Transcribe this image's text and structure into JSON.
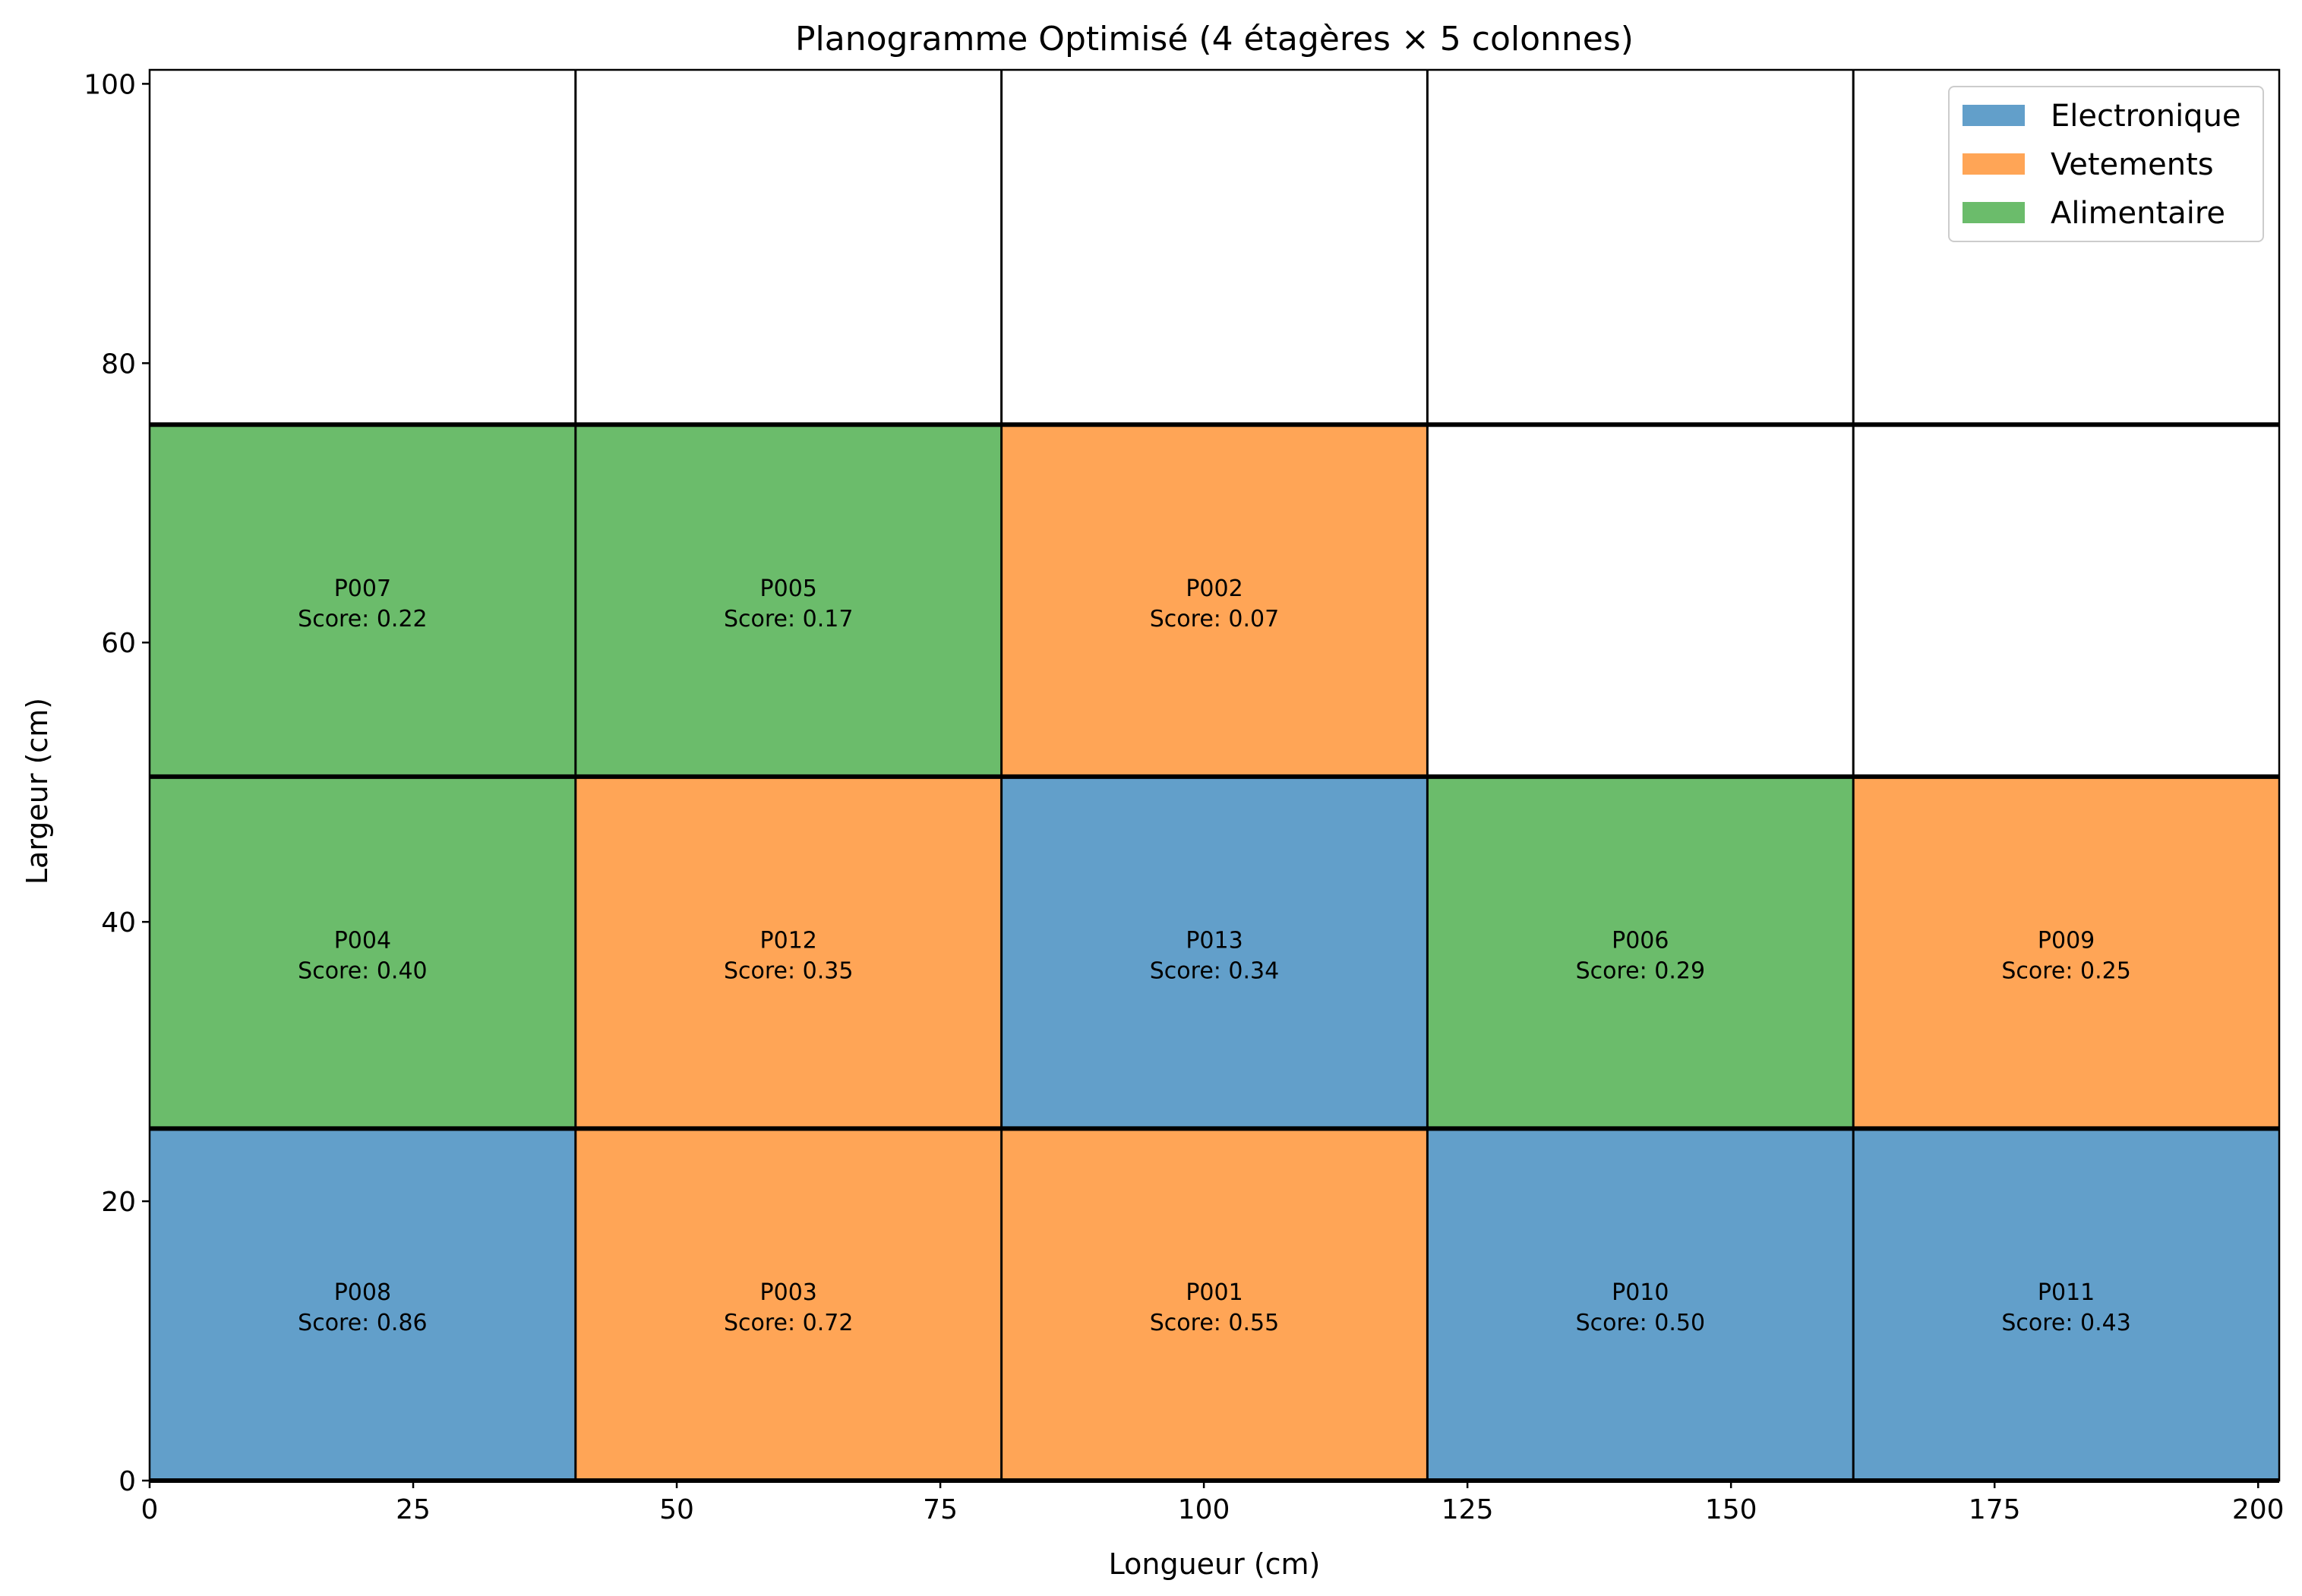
{
  "chart_data": {
    "type": "heatmap",
    "title": "Planogramme Optimisé (4 étagères × 5 colonnes)",
    "xlabel": "Longueur (cm)",
    "ylabel": "Largeur (cm)",
    "xlim": [
      0,
      202
    ],
    "ylim": [
      0,
      101
    ],
    "xticks": [
      "0",
      "25",
      "50",
      "75",
      "100",
      "125",
      "150",
      "175",
      "200"
    ],
    "yticks": [
      "0",
      "20",
      "40",
      "60",
      "80",
      "100"
    ],
    "grid": false,
    "legend_position": "top-right",
    "shelves": 4,
    "columns": 5,
    "shelf_boundaries": [
      0,
      25.2,
      50.4,
      75.6,
      101
    ],
    "column_boundaries": [
      0,
      40.4,
      80.8,
      121.2,
      161.6,
      202
    ],
    "legend": [
      {
        "name": "Electronique",
        "color": "#629fca"
      },
      {
        "name": "Vetements",
        "color": "#ffa556"
      },
      {
        "name": "Alimentaire",
        "color": "#6bbc6b"
      }
    ],
    "cells": [
      {
        "shelf": 0,
        "column": 0,
        "product": "P008",
        "score_label": "Score: 0.86",
        "score": 0.86,
        "category": "Electronique"
      },
      {
        "shelf": 0,
        "column": 1,
        "product": "P003",
        "score_label": "Score: 0.72",
        "score": 0.72,
        "category": "Vetements"
      },
      {
        "shelf": 0,
        "column": 2,
        "product": "P001",
        "score_label": "Score: 0.55",
        "score": 0.55,
        "category": "Vetements"
      },
      {
        "shelf": 0,
        "column": 3,
        "product": "P010",
        "score_label": "Score: 0.50",
        "score": 0.5,
        "category": "Electronique"
      },
      {
        "shelf": 0,
        "column": 4,
        "product": "P011",
        "score_label": "Score: 0.43",
        "score": 0.43,
        "category": "Electronique"
      },
      {
        "shelf": 1,
        "column": 0,
        "product": "P004",
        "score_label": "Score: 0.40",
        "score": 0.4,
        "category": "Alimentaire"
      },
      {
        "shelf": 1,
        "column": 1,
        "product": "P012",
        "score_label": "Score: 0.35",
        "score": 0.35,
        "category": "Vetements"
      },
      {
        "shelf": 1,
        "column": 2,
        "product": "P013",
        "score_label": "Score: 0.34",
        "score": 0.34,
        "category": "Electronique"
      },
      {
        "shelf": 1,
        "column": 3,
        "product": "P006",
        "score_label": "Score: 0.29",
        "score": 0.29,
        "category": "Alimentaire"
      },
      {
        "shelf": 1,
        "column": 4,
        "product": "P009",
        "score_label": "Score: 0.25",
        "score": 0.25,
        "category": "Vetements"
      },
      {
        "shelf": 2,
        "column": 0,
        "product": "P007",
        "score_label": "Score: 0.22",
        "score": 0.22,
        "category": "Alimentaire"
      },
      {
        "shelf": 2,
        "column": 1,
        "product": "P005",
        "score_label": "Score: 0.17",
        "score": 0.17,
        "category": "Alimentaire"
      },
      {
        "shelf": 2,
        "column": 2,
        "product": "P002",
        "score_label": "Score: 0.07",
        "score": 0.07,
        "category": "Vetements"
      }
    ]
  }
}
